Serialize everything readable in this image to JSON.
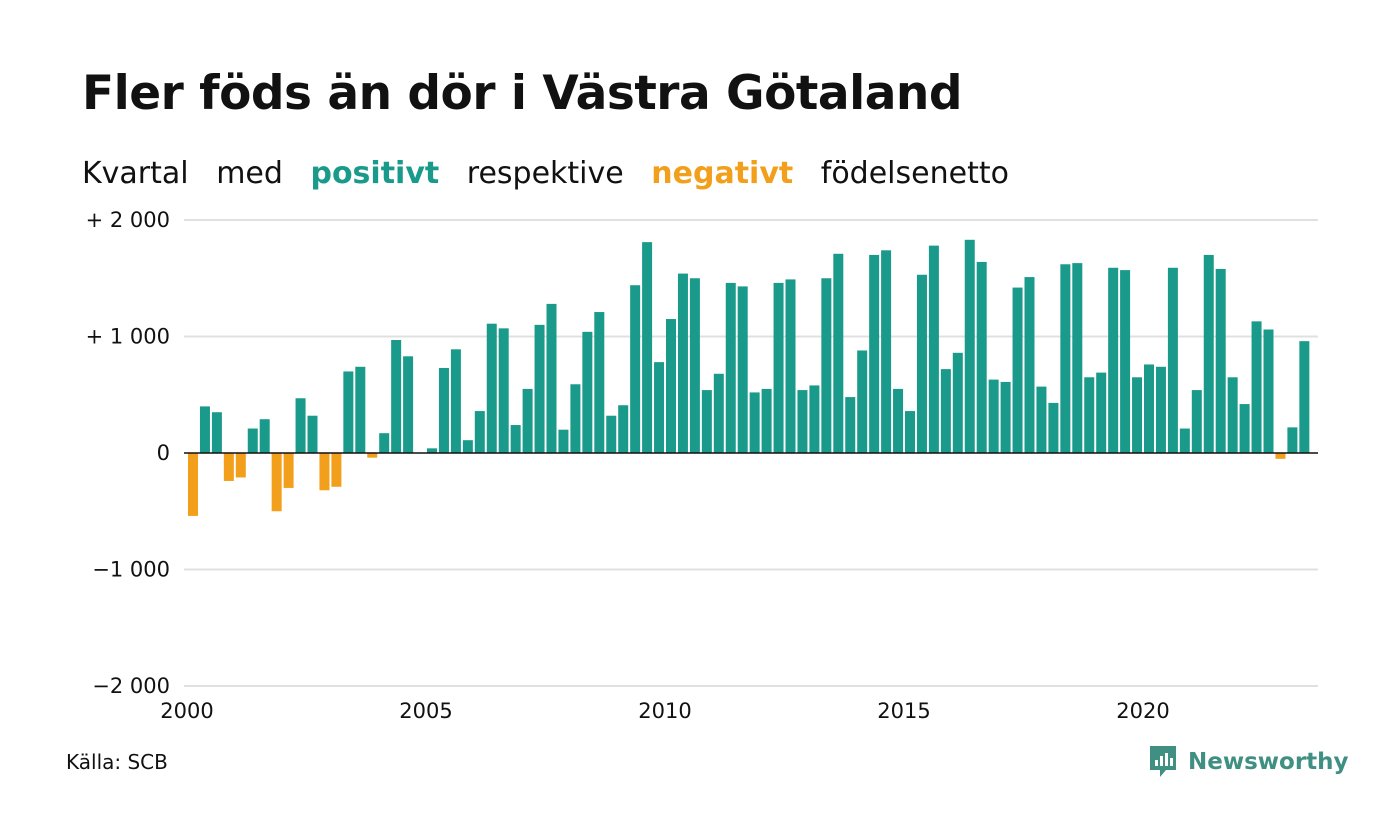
{
  "title": "Fler föds än dör i Västra Götaland",
  "subtitle": {
    "part1": "Kvartal",
    "part2": "med",
    "positive": "positivt",
    "part3": "respektive",
    "negative": "negativt",
    "part4": "födelsenetto"
  },
  "source": "Källa: SCB",
  "brand": "Newsworthy",
  "colors": {
    "positive": "#1a9a8a",
    "negative": "#f29f1c",
    "grid": "#e0e0e0",
    "logo": "#3f8f82"
  },
  "chart_data": {
    "type": "bar",
    "ylim": [
      -2000,
      2000
    ],
    "yticks": [
      {
        "value": 2000,
        "label": "+ 2 000"
      },
      {
        "value": 1000,
        "label": "+ 1 000"
      },
      {
        "value": 0,
        "label": "0"
      },
      {
        "value": -1000,
        "label": "−1 000"
      },
      {
        "value": -2000,
        "label": "−2 000"
      }
    ],
    "xticks": [
      {
        "year": 2000,
        "label": "2000"
      },
      {
        "year": 2005,
        "label": "2005"
      },
      {
        "year": 2010,
        "label": "2010"
      },
      {
        "year": 2015,
        "label": "2015"
      },
      {
        "year": 2020,
        "label": "2020"
      }
    ],
    "start_year": 2000,
    "start_quarter": 1,
    "grid": true,
    "values": [
      -540,
      400,
      350,
      -240,
      -210,
      210,
      290,
      -500,
      -300,
      470,
      320,
      -320,
      -290,
      700,
      740,
      -40,
      170,
      970,
      830,
      0,
      40,
      730,
      890,
      110,
      360,
      1110,
      1070,
      240,
      550,
      1100,
      1280,
      200,
      590,
      1040,
      1210,
      320,
      410,
      1440,
      1810,
      780,
      1150,
      1540,
      1500,
      540,
      680,
      1460,
      1430,
      520,
      550,
      1460,
      1490,
      540,
      580,
      1500,
      1710,
      480,
      880,
      1700,
      1740,
      550,
      360,
      1530,
      1780,
      720,
      860,
      1830,
      1640,
      630,
      610,
      1420,
      1510,
      570,
      430,
      1620,
      1630,
      650,
      690,
      1590,
      1570,
      650,
      760,
      740,
      1590,
      210,
      540,
      1700,
      1580,
      650,
      420,
      1130,
      1060,
      -50,
      220,
      960
    ]
  }
}
